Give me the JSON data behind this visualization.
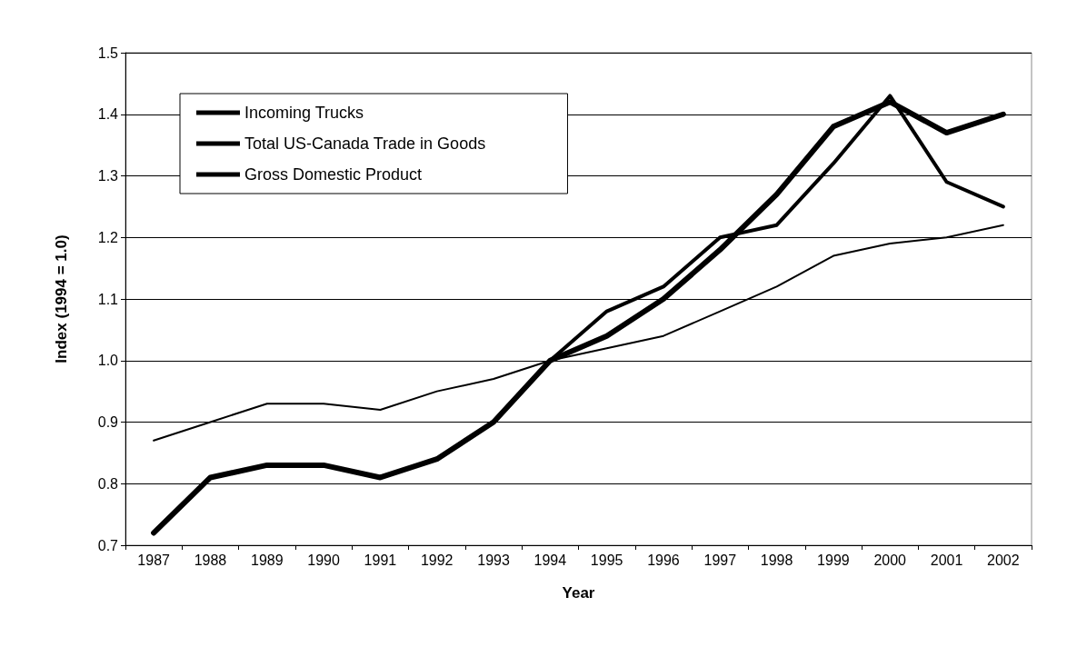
{
  "chart_data": {
    "type": "line",
    "xlabel": "Year",
    "ylabel": "Index (1994 = 1.0)",
    "categories": [
      "1987",
      "1988",
      "1989",
      "1990",
      "1991",
      "1992",
      "1993",
      "1994",
      "1995",
      "1996",
      "1997",
      "1998",
      "1999",
      "2000",
      "2001",
      "2002"
    ],
    "series": [
      {
        "name": "Incoming Trucks",
        "color": "#000000",
        "values": [
          0.72,
          0.81,
          0.83,
          0.83,
          0.81,
          0.84,
          0.9,
          1.0,
          1.04,
          1.1,
          1.18,
          1.27,
          1.38,
          1.42,
          1.37,
          1.4
        ]
      },
      {
        "name": "Total US-Canada Trade in Goods",
        "color": "#000000",
        "values": [
          0.72,
          0.81,
          0.83,
          0.83,
          0.81,
          0.84,
          0.9,
          1.0,
          1.08,
          1.12,
          1.2,
          1.22,
          1.32,
          1.43,
          1.29,
          1.25
        ]
      },
      {
        "name": "Gross Domestic Product",
        "color": "#000000",
        "values": [
          0.87,
          0.9,
          0.93,
          0.93,
          0.92,
          0.95,
          0.97,
          1.0,
          1.02,
          1.04,
          1.08,
          1.12,
          1.17,
          1.19,
          1.2,
          1.22
        ]
      }
    ],
    "ylim": [
      0.7,
      1.5
    ],
    "yticks": [
      0.7,
      0.8,
      0.9,
      {
        "value": 1.0,
        "label": "1.0"
      },
      1.1,
      1.2,
      1.3,
      1.4,
      1.5
    ],
    "grid": "y",
    "legend": "top left",
    "marker": "none",
    "line_style": "solid"
  }
}
